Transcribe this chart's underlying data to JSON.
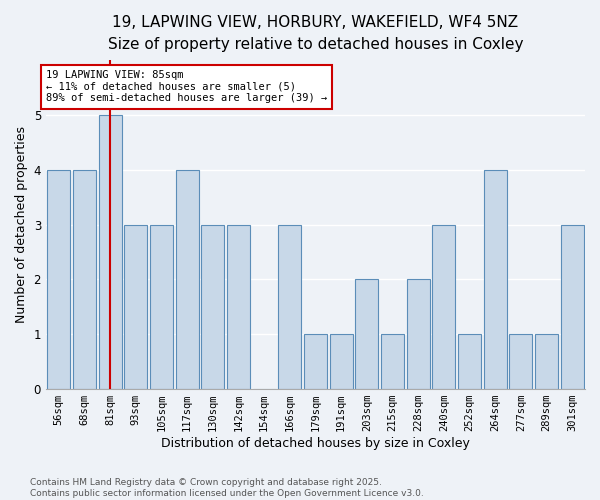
{
  "title_line1": "19, LAPWING VIEW, HORBURY, WAKEFIELD, WF4 5NZ",
  "title_line2": "Size of property relative to detached houses in Coxley",
  "xlabel": "Distribution of detached houses by size in Coxley",
  "ylabel": "Number of detached properties",
  "categories": [
    "56sqm",
    "68sqm",
    "81sqm",
    "93sqm",
    "105sqm",
    "117sqm",
    "130sqm",
    "142sqm",
    "154sqm",
    "166sqm",
    "179sqm",
    "191sqm",
    "203sqm",
    "215sqm",
    "228sqm",
    "240sqm",
    "252sqm",
    "264sqm",
    "277sqm",
    "289sqm",
    "301sqm"
  ],
  "values": [
    4,
    4,
    5,
    3,
    3,
    4,
    3,
    3,
    0,
    3,
    1,
    1,
    2,
    1,
    2,
    3,
    1,
    4,
    1,
    1,
    3
  ],
  "bar_color": "#c8d8e8",
  "bar_edge_color": "#5b8db8",
  "highlight_index": 2,
  "highlight_color": "#cc0000",
  "ylim": [
    0,
    6
  ],
  "yticks": [
    0,
    1,
    2,
    3,
    4,
    5,
    6
  ],
  "annotation_text": "19 LAPWING VIEW: 85sqm\n← 11% of detached houses are smaller (5)\n89% of semi-detached houses are larger (39) →",
  "annotation_box_color": "#ffffff",
  "annotation_box_edge_color": "#cc0000",
  "footer_line1": "Contains HM Land Registry data © Crown copyright and database right 2025.",
  "footer_line2": "Contains public sector information licensed under the Open Government Licence v3.0.",
  "background_color": "#eef2f7",
  "grid_color": "#ffffff",
  "title_fontsize": 11,
  "subtitle_fontsize": 10,
  "axis_label_fontsize": 9,
  "tick_fontsize": 7.5,
  "annotation_fontsize": 7.5,
  "footer_fontsize": 6.5
}
